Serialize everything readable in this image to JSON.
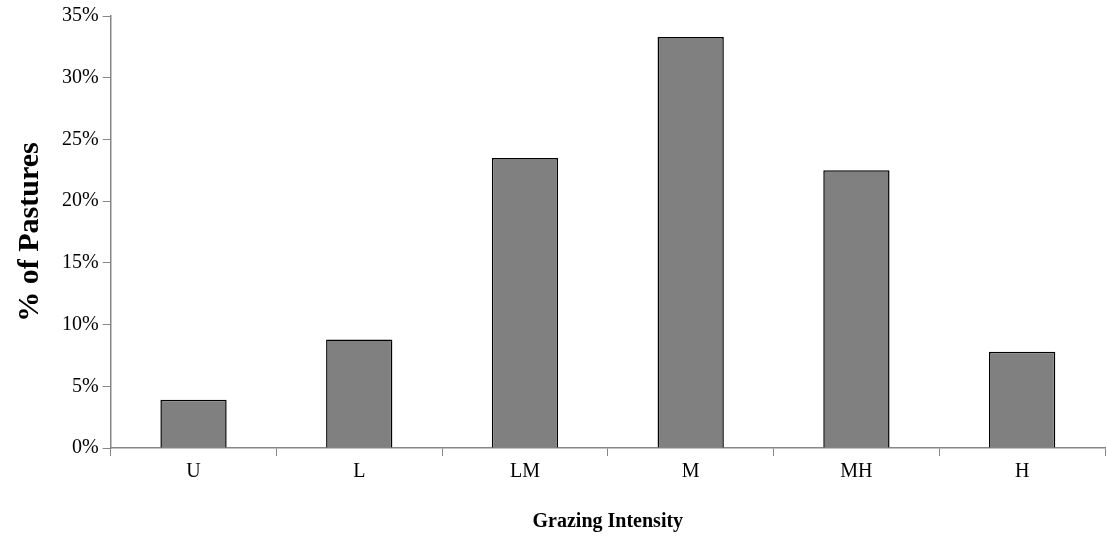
{
  "chart_data": {
    "type": "bar",
    "xlabel": "Grazing Intensity",
    "ylabel": "% of Pastures",
    "categories": [
      "U",
      "L",
      "LM",
      "M",
      "MH",
      "H"
    ],
    "values": [
      3.9,
      8.8,
      23.5,
      33.3,
      22.5,
      7.8
    ],
    "color": "#808080",
    "ylim": [
      0,
      35
    ],
    "yticks": [
      {
        "value": 0,
        "label": "0%"
      },
      {
        "value": 5,
        "label": "5%"
      },
      {
        "value": 10,
        "label": "10%"
      },
      {
        "value": 15,
        "label": "15%"
      },
      {
        "value": 20,
        "label": "20%"
      },
      {
        "value": 25,
        "label": "25%"
      },
      {
        "value": 30,
        "label": "30%"
      },
      {
        "value": 35,
        "label": "35%"
      }
    ],
    "grid": false,
    "legend": false
  }
}
